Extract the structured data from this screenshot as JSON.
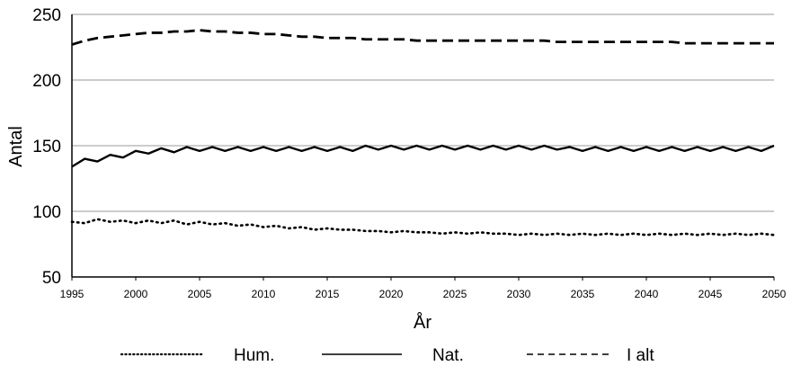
{
  "chart_data": {
    "type": "line",
    "xlabel": "År",
    "ylabel": "Antal",
    "xlim": [
      1995,
      2050
    ],
    "ylim": [
      50,
      250
    ],
    "yticks": [
      50,
      100,
      150,
      200,
      250
    ],
    "xticks": [
      1995,
      2000,
      2005,
      2010,
      2015,
      2020,
      2025,
      2030,
      2035,
      2040,
      2045,
      2050
    ],
    "grid": "horizontal",
    "legend_position": "bottom",
    "x": [
      1995,
      1996,
      1997,
      1998,
      1999,
      2000,
      2001,
      2002,
      2003,
      2004,
      2005,
      2006,
      2007,
      2008,
      2009,
      2010,
      2011,
      2012,
      2013,
      2014,
      2015,
      2016,
      2017,
      2018,
      2019,
      2020,
      2021,
      2022,
      2023,
      2024,
      2025,
      2026,
      2027,
      2028,
      2029,
      2030,
      2031,
      2032,
      2033,
      2034,
      2035,
      2036,
      2037,
      2038,
      2039,
      2040,
      2041,
      2042,
      2043,
      2044,
      2045,
      2046,
      2047,
      2048,
      2049,
      2050
    ],
    "series": [
      {
        "name": "Hum.",
        "style": "dotted",
        "values": [
          92,
          91,
          94,
          92,
          93,
          91,
          93,
          91,
          93,
          90,
          92,
          90,
          91,
          89,
          90,
          88,
          89,
          87,
          88,
          86,
          87,
          86,
          86,
          85,
          85,
          84,
          85,
          84,
          84,
          83,
          84,
          83,
          84,
          83,
          83,
          82,
          83,
          82,
          83,
          82,
          83,
          82,
          83,
          82,
          83,
          82,
          83,
          82,
          83,
          82,
          83,
          82,
          83,
          82,
          83,
          82
        ]
      },
      {
        "name": "Nat.",
        "style": "solid",
        "values": [
          134,
          140,
          138,
          143,
          141,
          146,
          144,
          148,
          145,
          149,
          146,
          149,
          146,
          149,
          146,
          149,
          146,
          149,
          146,
          149,
          146,
          149,
          146,
          150,
          147,
          150,
          147,
          150,
          147,
          150,
          147,
          150,
          147,
          150,
          147,
          150,
          147,
          150,
          147,
          149,
          146,
          149,
          146,
          149,
          146,
          149,
          146,
          149,
          146,
          149,
          146,
          149,
          146,
          149,
          146,
          150
        ]
      },
      {
        "name": "I alt",
        "style": "dashed",
        "values": [
          227,
          230,
          232,
          233,
          234,
          235,
          236,
          236,
          237,
          237,
          238,
          237,
          237,
          236,
          236,
          235,
          235,
          234,
          233,
          233,
          232,
          232,
          232,
          231,
          231,
          231,
          231,
          230,
          230,
          230,
          230,
          230,
          230,
          230,
          230,
          230,
          230,
          230,
          229,
          229,
          229,
          229,
          229,
          229,
          229,
          229,
          229,
          229,
          228,
          228,
          228,
          228,
          228,
          228,
          228,
          228
        ]
      }
    ]
  }
}
